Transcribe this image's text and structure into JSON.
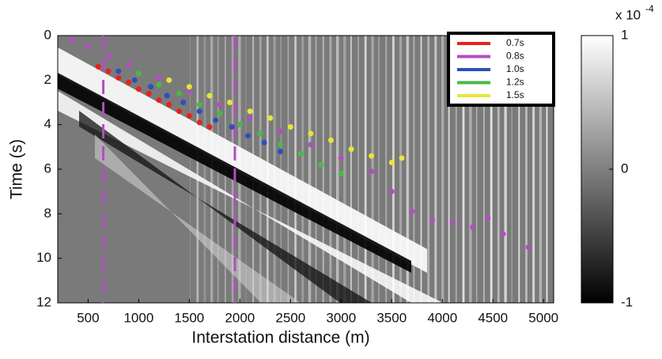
{
  "chart_data": {
    "type": "scatter",
    "x_label": "Interstation distance (m)",
    "y_label": "Time (s)",
    "xlim": [
      200,
      5100
    ],
    "xticks": [
      500,
      1000,
      1500,
      2000,
      2500,
      3000,
      3500,
      4000,
      4500,
      5000
    ],
    "ylim": [
      0,
      12
    ],
    "yticks": [
      0,
      2,
      4,
      6,
      8,
      10,
      12
    ],
    "y_inverted": true,
    "reference_lines": {
      "color": "#b04fbf",
      "x": [
        650,
        1950
      ]
    },
    "legend": "upper right",
    "series": [
      {
        "name": "0.7s",
        "color": "#e8221c",
        "x": [
          600,
          700,
          800,
          900,
          1000,
          1100,
          1200,
          1300,
          1400,
          1500,
          1600,
          1700
        ],
        "y": [
          1.4,
          1.6,
          1.9,
          2.1,
          2.4,
          2.6,
          2.9,
          3.1,
          3.4,
          3.6,
          3.9,
          4.1
        ]
      },
      {
        "name": "0.8s",
        "color": "#b04fbf",
        "x": [
          350,
          500,
          700,
          900,
          1200,
          1500,
          1800,
          2100,
          2400,
          2700,
          3000,
          3300,
          3500,
          3700,
          3900,
          4100,
          4300,
          4450,
          4600,
          4850
        ],
        "y": [
          0.2,
          0.5,
          0.9,
          1.3,
          1.9,
          2.5,
          3.1,
          3.7,
          4.3,
          4.9,
          5.5,
          6.1,
          7.0,
          7.9,
          8.3,
          8.4,
          8.6,
          8.2,
          8.9,
          9.5
        ]
      },
      {
        "name": "1.0s",
        "color": "#2d4fb8",
        "x": [
          800,
          960,
          1120,
          1280,
          1440,
          1600,
          1760,
          1920,
          2080,
          2240,
          2400
        ],
        "y": [
          1.6,
          2.0,
          2.3,
          2.7,
          3.0,
          3.4,
          3.8,
          4.1,
          4.5,
          4.8,
          5.2
        ]
      },
      {
        "name": "1.2s",
        "color": "#4bb84b",
        "x": [
          1000,
          1200,
          1400,
          1600,
          1800,
          2000,
          2200,
          2400,
          2600,
          2800,
          3000
        ],
        "y": [
          1.7,
          2.2,
          2.6,
          3.1,
          3.5,
          4.0,
          4.4,
          4.9,
          5.3,
          5.8,
          6.2
        ]
      },
      {
        "name": "1.5s",
        "color": "#e6e63a",
        "x": [
          1300,
          1500,
          1700,
          1900,
          2100,
          2300,
          2500,
          2700,
          2900,
          3100,
          3300,
          3500,
          3600
        ],
        "y": [
          2.0,
          2.3,
          2.7,
          3.0,
          3.4,
          3.7,
          4.1,
          4.4,
          4.7,
          5.1,
          5.4,
          5.7,
          5.5
        ]
      }
    ],
    "colorbar": {
      "lim": [
        -1,
        1
      ],
      "ticks": [
        -1,
        0,
        1
      ],
      "multiplier": "x 10",
      "exponent": "-4"
    }
  }
}
